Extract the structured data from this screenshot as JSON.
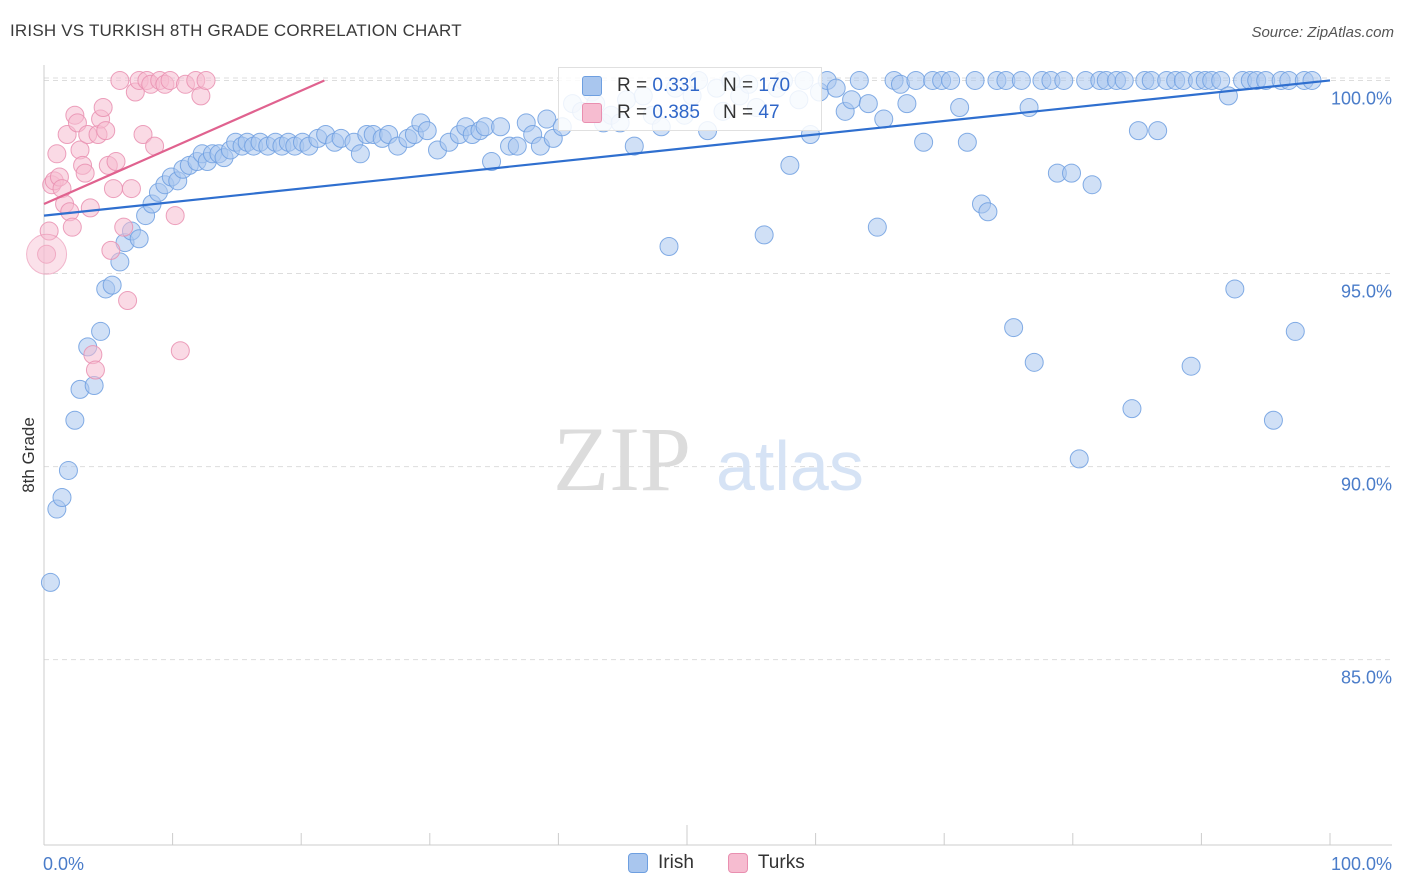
{
  "title": "IRISH VS TURKISH 8TH GRADE CORRELATION CHART",
  "source": "Source: ZipAtlas.com",
  "watermark": {
    "zip": "ZIP",
    "atlas": "atlas"
  },
  "colors": {
    "irish_fill": "#a9c6ee",
    "irish_stroke": "#6e9fe0",
    "irish_line": "#2f6fcf",
    "turks_fill": "#f6bcd0",
    "turks_stroke": "#e98fb0",
    "turks_line": "#e0628f",
    "tick_label": "#4a7cc9",
    "grid": "#dddddd"
  },
  "stats": [
    {
      "r_label": "R =",
      "r_value": "0.331",
      "n_label": "N =",
      "n_value": "170"
    },
    {
      "r_label": "R =",
      "r_value": "0.385",
      "n_label": "N =",
      "n_value": "47"
    }
  ],
  "chart_data": {
    "type": "scatter",
    "title": "IRISH VS TURKISH 8TH GRADE CORRELATION CHART",
    "xlabel": "",
    "ylabel": "8th Grade",
    "xlim": [
      0,
      100
    ],
    "ylim": [
      80.2,
      100.4
    ],
    "x_tick_labels": [
      "0.0%",
      "100.0%"
    ],
    "y_ticks": [
      85,
      90,
      95,
      100
    ],
    "y_tick_labels": [
      "85.0%",
      "90.0%",
      "95.0%",
      "100.0%"
    ],
    "grid": "horizontal dashed",
    "legend_position": "bottom-center",
    "series": [
      {
        "name": "Irish",
        "trend": {
          "x0": 0,
          "y0": 96.5,
          "x1": 100,
          "y1": 100.0
        },
        "points": [
          [
            0.5,
            87.0
          ],
          [
            1.0,
            88.9
          ],
          [
            1.4,
            89.2
          ],
          [
            1.9,
            89.9
          ],
          [
            2.4,
            91.2
          ],
          [
            2.8,
            92.0
          ],
          [
            3.4,
            93.1
          ],
          [
            3.9,
            92.1
          ],
          [
            4.4,
            93.5
          ],
          [
            4.8,
            94.6
          ],
          [
            5.3,
            94.7
          ],
          [
            5.9,
            95.3
          ],
          [
            6.3,
            95.8
          ],
          [
            6.8,
            96.1
          ],
          [
            7.4,
            95.9
          ],
          [
            7.9,
            96.5
          ],
          [
            8.4,
            96.8
          ],
          [
            8.9,
            97.1
          ],
          [
            9.4,
            97.3
          ],
          [
            9.9,
            97.5
          ],
          [
            10.4,
            97.4
          ],
          [
            10.8,
            97.7
          ],
          [
            11.3,
            97.8
          ],
          [
            11.9,
            97.9
          ],
          [
            12.3,
            98.1
          ],
          [
            12.7,
            97.9
          ],
          [
            13.1,
            98.1
          ],
          [
            13.6,
            98.1
          ],
          [
            14.0,
            98.0
          ],
          [
            14.5,
            98.2
          ],
          [
            14.9,
            98.4
          ],
          [
            15.4,
            98.3
          ],
          [
            15.8,
            98.4
          ],
          [
            16.3,
            98.3
          ],
          [
            16.8,
            98.4
          ],
          [
            17.4,
            98.3
          ],
          [
            18.0,
            98.4
          ],
          [
            18.5,
            98.3
          ],
          [
            19.0,
            98.4
          ],
          [
            19.5,
            98.3
          ],
          [
            20.1,
            98.4
          ],
          [
            20.6,
            98.3
          ],
          [
            21.3,
            98.5
          ],
          [
            21.9,
            98.6
          ],
          [
            22.6,
            98.4
          ],
          [
            23.1,
            98.5
          ],
          [
            24.1,
            98.4
          ],
          [
            24.6,
            98.1
          ],
          [
            25.1,
            98.6
          ],
          [
            25.6,
            98.6
          ],
          [
            26.3,
            98.5
          ],
          [
            26.8,
            98.6
          ],
          [
            27.5,
            98.3
          ],
          [
            28.3,
            98.5
          ],
          [
            28.8,
            98.6
          ],
          [
            29.3,
            98.9
          ],
          [
            29.8,
            98.7
          ],
          [
            30.6,
            98.2
          ],
          [
            31.5,
            98.4
          ],
          [
            32.3,
            98.6
          ],
          [
            32.8,
            98.8
          ],
          [
            33.3,
            98.6
          ],
          [
            33.9,
            98.7
          ],
          [
            34.3,
            98.8
          ],
          [
            34.8,
            97.9
          ],
          [
            35.5,
            98.8
          ],
          [
            36.2,
            98.3
          ],
          [
            36.8,
            98.3
          ],
          [
            37.5,
            98.9
          ],
          [
            38.0,
            98.6
          ],
          [
            38.6,
            98.3
          ],
          [
            39.1,
            99.0
          ],
          [
            39.6,
            98.5
          ],
          [
            40.3,
            98.8
          ],
          [
            41.1,
            99.4
          ],
          [
            41.8,
            99.2
          ],
          [
            42.6,
            99.7
          ],
          [
            42.9,
            99.4
          ],
          [
            43.5,
            98.9
          ],
          [
            44.1,
            99.1
          ],
          [
            44.8,
            98.9
          ],
          [
            45.3,
            99.5
          ],
          [
            45.9,
            98.3
          ],
          [
            46.6,
            99.6
          ],
          [
            47.3,
            99.1
          ],
          [
            48.0,
            98.8
          ],
          [
            48.6,
            95.7
          ],
          [
            49.1,
            99.8
          ],
          [
            49.8,
            99.1
          ],
          [
            50.4,
            99.6
          ],
          [
            50.9,
            100.0
          ],
          [
            51.6,
            98.7
          ],
          [
            52.3,
            99.8
          ],
          [
            52.8,
            99.2
          ],
          [
            53.4,
            100.0
          ],
          [
            54.1,
            99.6
          ],
          [
            54.8,
            99.9
          ],
          [
            55.4,
            99.3
          ],
          [
            56.0,
            96.0
          ],
          [
            57.0,
            99.8
          ],
          [
            57.5,
            100.0
          ],
          [
            58.0,
            97.8
          ],
          [
            58.7,
            99.5
          ],
          [
            59.1,
            100.0
          ],
          [
            59.6,
            98.6
          ],
          [
            60.3,
            99.7
          ],
          [
            60.9,
            100.0
          ],
          [
            61.6,
            99.8
          ],
          [
            62.3,
            99.2
          ],
          [
            62.8,
            99.5
          ],
          [
            63.4,
            100.0
          ],
          [
            64.1,
            99.4
          ],
          [
            64.8,
            96.2
          ],
          [
            65.3,
            99.0
          ],
          [
            66.1,
            100.0
          ],
          [
            66.6,
            99.9
          ],
          [
            67.1,
            99.4
          ],
          [
            67.8,
            100.0
          ],
          [
            68.4,
            98.4
          ],
          [
            69.1,
            100.0
          ],
          [
            69.8,
            100.0
          ],
          [
            70.5,
            100.0
          ],
          [
            71.2,
            99.3
          ],
          [
            71.8,
            98.4
          ],
          [
            72.4,
            100.0
          ],
          [
            72.9,
            96.8
          ],
          [
            73.4,
            96.6
          ],
          [
            74.1,
            100.0
          ],
          [
            74.8,
            100.0
          ],
          [
            75.4,
            93.6
          ],
          [
            76.0,
            100.0
          ],
          [
            76.6,
            99.3
          ],
          [
            77.0,
            92.7
          ],
          [
            77.6,
            100.0
          ],
          [
            78.3,
            100.0
          ],
          [
            78.8,
            97.6
          ],
          [
            79.3,
            100.0
          ],
          [
            79.9,
            97.6
          ],
          [
            80.5,
            90.2
          ],
          [
            81.0,
            100.0
          ],
          [
            81.5,
            97.3
          ],
          [
            82.1,
            100.0
          ],
          [
            82.6,
            100.0
          ],
          [
            83.4,
            100.0
          ],
          [
            84.0,
            100.0
          ],
          [
            84.6,
            91.5
          ],
          [
            85.1,
            98.7
          ],
          [
            85.6,
            100.0
          ],
          [
            86.1,
            100.0
          ],
          [
            86.6,
            98.7
          ],
          [
            87.3,
            100.0
          ],
          [
            88.0,
            100.0
          ],
          [
            88.6,
            100.0
          ],
          [
            89.2,
            92.6
          ],
          [
            89.7,
            100.0
          ],
          [
            90.3,
            100.0
          ],
          [
            90.8,
            100.0
          ],
          [
            91.5,
            100.0
          ],
          [
            92.1,
            99.6
          ],
          [
            92.6,
            94.6
          ],
          [
            93.2,
            100.0
          ],
          [
            93.8,
            100.0
          ],
          [
            94.3,
            100.0
          ],
          [
            95.0,
            100.0
          ],
          [
            95.6,
            91.2
          ],
          [
            96.2,
            100.0
          ],
          [
            96.8,
            100.0
          ],
          [
            97.3,
            93.5
          ],
          [
            98.0,
            100.0
          ],
          [
            98.6,
            100.0
          ]
        ]
      },
      {
        "name": "Turks",
        "trend": {
          "x0": 0,
          "y0": 96.8,
          "x1": 21.8,
          "y1": 100.0
        },
        "points": [
          [
            0.2,
            95.5
          ],
          [
            0.4,
            96.1
          ],
          [
            0.6,
            97.3
          ],
          [
            0.8,
            97.4
          ],
          [
            1.0,
            98.1
          ],
          [
            1.2,
            97.5
          ],
          [
            1.4,
            97.2
          ],
          [
            1.6,
            96.8
          ],
          [
            1.8,
            98.6
          ],
          [
            2.0,
            96.6
          ],
          [
            2.2,
            96.2
          ],
          [
            2.4,
            99.1
          ],
          [
            2.6,
            98.9
          ],
          [
            2.8,
            98.2
          ],
          [
            3.0,
            97.8
          ],
          [
            3.2,
            97.6
          ],
          [
            3.4,
            98.6
          ],
          [
            3.6,
            96.7
          ],
          [
            3.8,
            92.9
          ],
          [
            4.0,
            92.5
          ],
          [
            4.2,
            98.6
          ],
          [
            4.4,
            99.0
          ],
          [
            4.6,
            99.3
          ],
          [
            4.8,
            98.7
          ],
          [
            5.0,
            97.8
          ],
          [
            5.2,
            95.6
          ],
          [
            5.4,
            97.2
          ],
          [
            5.6,
            97.9
          ],
          [
            5.9,
            100.0
          ],
          [
            6.2,
            96.2
          ],
          [
            6.5,
            94.3
          ],
          [
            6.8,
            97.2
          ],
          [
            7.1,
            99.7
          ],
          [
            7.4,
            100.0
          ],
          [
            7.7,
            98.6
          ],
          [
            8.0,
            100.0
          ],
          [
            8.3,
            99.9
          ],
          [
            8.6,
            98.3
          ],
          [
            9.0,
            100.0
          ],
          [
            9.4,
            99.9
          ],
          [
            9.8,
            100.0
          ],
          [
            10.2,
            96.5
          ],
          [
            10.6,
            93.0
          ],
          [
            11.0,
            99.9
          ],
          [
            11.8,
            100.0
          ],
          [
            12.2,
            99.6
          ],
          [
            12.6,
            100.0
          ]
        ]
      }
    ]
  },
  "legend": {
    "items": [
      "Irish",
      "Turks"
    ]
  }
}
